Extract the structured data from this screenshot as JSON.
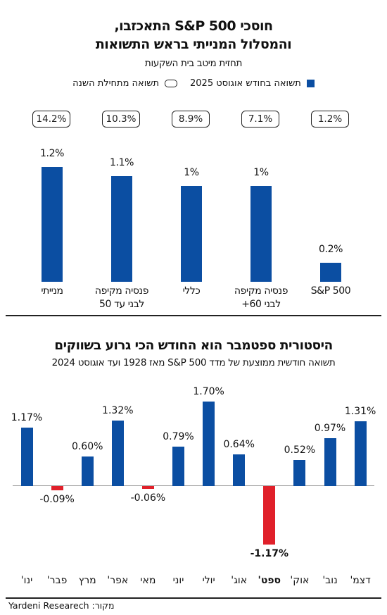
{
  "chart_data": [
    {
      "type": "bar",
      "title": [
        "חוסכי S&P 500 התאכזבו,",
        "והמסלול המנייתי בראש התשואות"
      ],
      "subtitle": "תחזית מיטב בית השקעות",
      "categories": [
        "S&P 500",
        "פנסיה מקיפה לבני 60+",
        "כללי",
        "פנסיה מקיפה לבני עד 50",
        "מנייתי"
      ],
      "series": [
        {
          "name": "תשואה בחודש אוגוסט 2025",
          "color": "#0b4ea2",
          "values": [
            0.2,
            1,
            1,
            1.1,
            1.2
          ],
          "value_labels": [
            "0.2%",
            "1%",
            "1%",
            "1.1%",
            "1.2%"
          ]
        },
        {
          "name": "תשואה מתחילת השנה",
          "color": "#222222",
          "values": [
            1.2,
            7.1,
            8.9,
            10.3,
            14.2
          ],
          "value_labels": [
            "1.2%",
            "7.1%",
            "8.9%",
            "10.3%",
            "14.2%"
          ]
        }
      ]
    },
    {
      "type": "bar",
      "title": "היסטורית ספטמבר הוא החודש הכי גרוע בשווקים",
      "subtitle": "תשואה חודשית ממוצעת של מדד S&P 500 מאז 1928 ועד אוגוסט 2024",
      "categories": [
        "ינו'",
        "פבר'",
        "מרץ",
        "אפר'",
        "מאי",
        "יוני",
        "יולי",
        "אוג'",
        "ספט'",
        "אוק'",
        "נוב'",
        "דצמ'"
      ],
      "values": [
        1.17,
        -0.09,
        0.6,
        1.32,
        -0.06,
        0.79,
        1.7,
        0.64,
        -1.17,
        0.52,
        0.97,
        1.31
      ],
      "value_labels": [
        "1.17%",
        "-0.09%",
        "0.60%",
        "1.32%",
        "-0.06%",
        "0.79%",
        "1.70%",
        "0.64%",
        "-1.17%",
        "0.52%",
        "0.97%",
        "1.31%"
      ],
      "color": "#0b4ea2",
      "negative_color": "#e0202a"
    }
  ],
  "source": "מקור: Yardeni Researech"
}
